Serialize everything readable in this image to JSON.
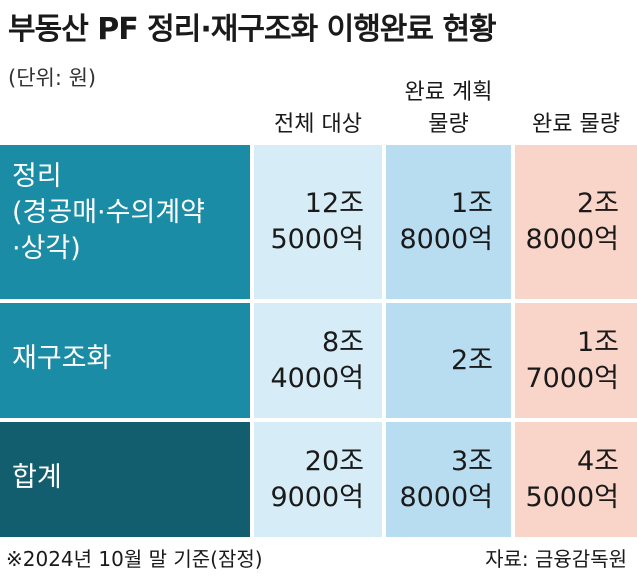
{
  "title": "부동산 PF 정리·재구조화 이행완료 현황",
  "unit": "(단위: 원)",
  "footnote_left": "※2024년 10월 말 기준(잠정)",
  "footnote_right": "자료: 금융감독원",
  "colors": {
    "row_label_bg": "#1a8ca6",
    "total_label_bg": "#135e6e",
    "col_target_bg": "#d6ecf6",
    "col_planned_bg": "#b9ddf0",
    "col_done_bg": "#f8d5c8"
  },
  "chart_data": {
    "type": "table",
    "title": "부동산 PF 정리·재구조화 이행완료 현황",
    "unit": "(단위: 원)",
    "columns": [
      {
        "lines": [
          "전체 대상"
        ]
      },
      {
        "lines": [
          "완료 계획",
          "물량"
        ]
      },
      {
        "lines": [
          "완료 물량"
        ]
      }
    ],
    "rows": [
      {
        "label_lines": [
          "정리",
          "(경공매·수의계약",
          "·상각)"
        ],
        "cells": [
          [
            "12조",
            "5000억"
          ],
          [
            "1조",
            "8000억"
          ],
          [
            "2조",
            "8000억"
          ]
        ]
      },
      {
        "label_lines": [
          "재구조화"
        ],
        "cells": [
          [
            "8조",
            "4000억"
          ],
          [
            "2조"
          ],
          [
            "1조",
            "7000억"
          ]
        ]
      },
      {
        "label_lines": [
          "합계"
        ],
        "cells": [
          [
            "20조",
            "9000억"
          ],
          [
            "3조",
            "8000억"
          ],
          [
            "4조",
            "5000억"
          ]
        ]
      }
    ]
  }
}
